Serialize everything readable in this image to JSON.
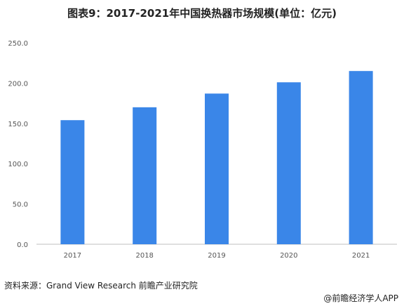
{
  "title": "图表9：2017-2021年中国换热器市场规模(单位：亿元)",
  "chart_data": {
    "type": "bar",
    "categories": [
      "2017",
      "2018",
      "2019",
      "2020",
      "2021"
    ],
    "values": [
      154,
      170,
      187,
      201,
      215
    ],
    "ylim": [
      0,
      250
    ],
    "yticks": [
      "0.0",
      "50.0",
      "100.0",
      "150.0",
      "200.0",
      "250.0"
    ],
    "grid": false,
    "bar_color": "#3a86e8"
  },
  "source": "资料来源：Grand View Research 前瞻产业研究院",
  "brand": "@前瞻经济学人APP"
}
